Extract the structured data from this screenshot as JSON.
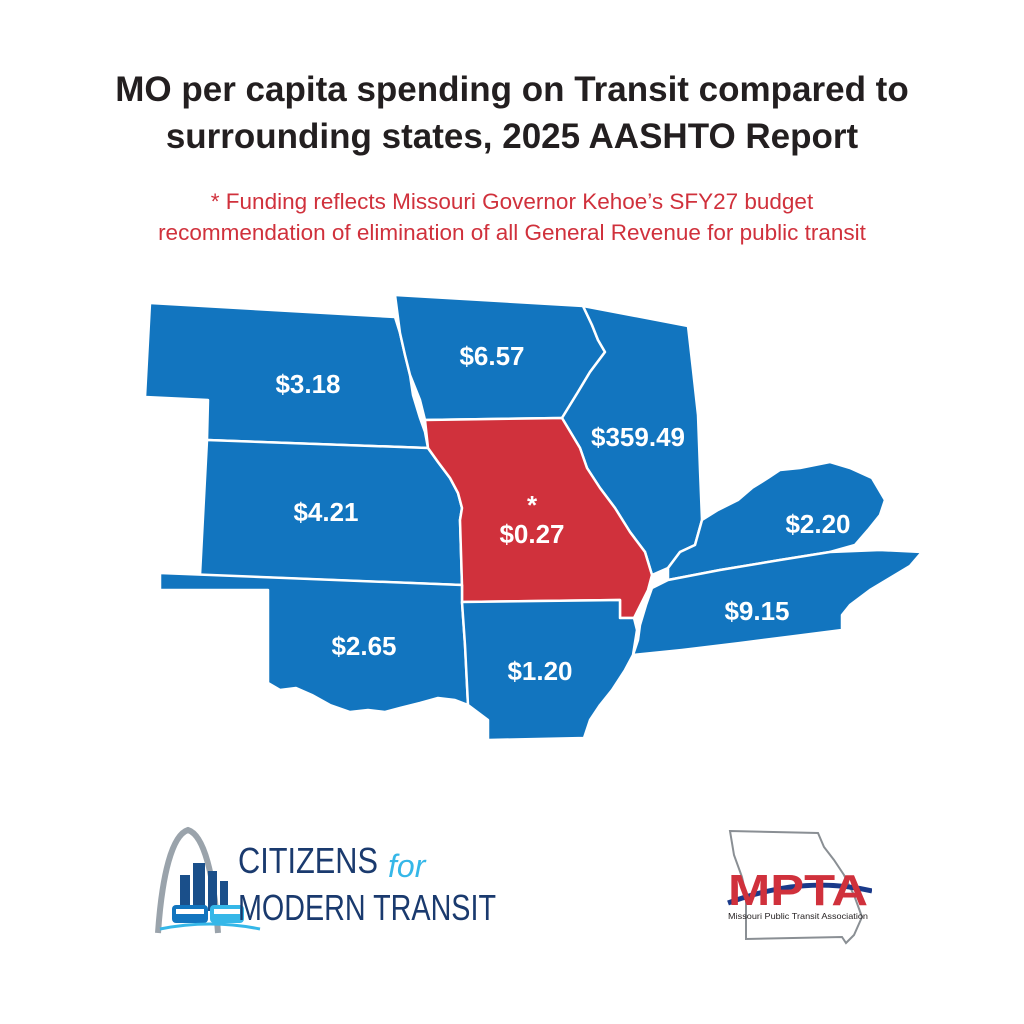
{
  "title_line1": "MO per capita spending on Transit compared to",
  "title_line2": "surrounding states, 2025 AASHTO Report",
  "subtitle_line1": "* Funding reflects Missouri Governor Kehoe’s SFY27 budget",
  "subtitle_line2": "recommendation of elimination of all General Revenue for public transit",
  "colors": {
    "state_fill": "#1275bf",
    "missouri_fill": "#d0313c",
    "title": "#231f20",
    "subtitle": "#d0313c"
  },
  "map": {
    "states": [
      {
        "id": "nebraska",
        "value": "$3.18"
      },
      {
        "id": "iowa",
        "value": "$6.57"
      },
      {
        "id": "illinois",
        "value": "$359.49"
      },
      {
        "id": "kansas",
        "value": "$4.21"
      },
      {
        "id": "missouri",
        "value": "$0.27",
        "marker": "*"
      },
      {
        "id": "kentucky",
        "value": "$2.20"
      },
      {
        "id": "tennessee",
        "value": "$9.15"
      },
      {
        "id": "oklahoma",
        "value": "$2.65"
      },
      {
        "id": "arkansas",
        "value": "$1.20"
      }
    ]
  },
  "logos": {
    "cmt": {
      "line1": "CITIZENS",
      "for": "for",
      "line2": "MODERN TRANSIT"
    },
    "mpta": {
      "abbr": "MPTA",
      "name": "Missouri Public Transit Association"
    }
  }
}
